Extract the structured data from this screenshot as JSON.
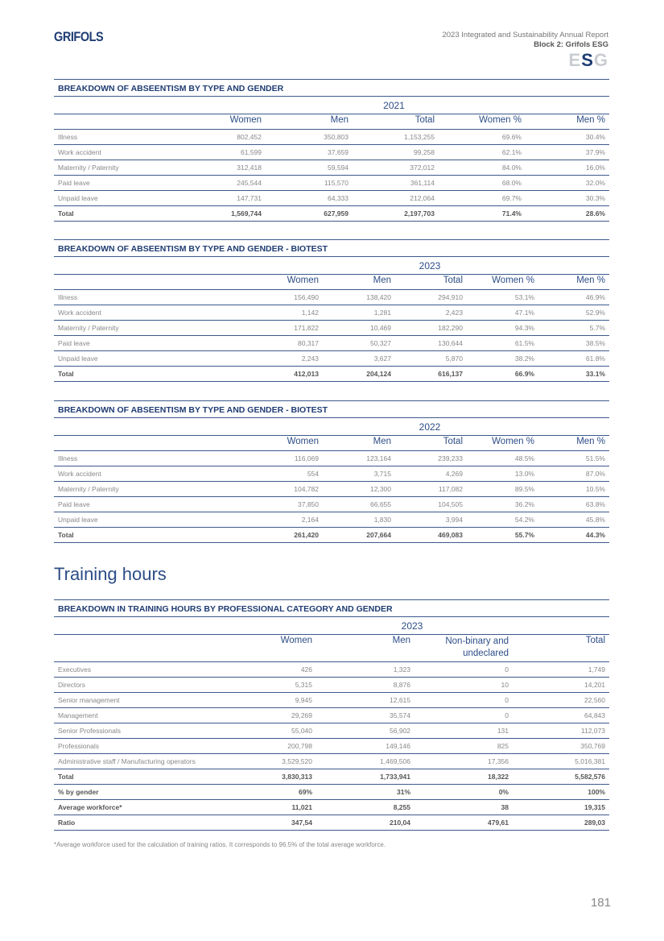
{
  "header": {
    "logo": "GRIFOLS",
    "report_title": "2023 Integrated and Sustainability Annual Report",
    "block": "Block 2: Grifols ESG",
    "esg_badge": "ESG"
  },
  "tables": [
    {
      "title": "BREAKDOWN OF ABSEENTISM BY TYPE AND GENDER",
      "year": "2021",
      "columns": [
        "Women",
        "Men",
        "Total",
        "Women %",
        "Men %"
      ],
      "rows": [
        {
          "label": "Illness",
          "values": [
            "802,452",
            "350,803",
            "1,153,255",
            "69.6%",
            "30.4%"
          ]
        },
        {
          "label": "Work accident",
          "values": [
            "61,599",
            "37,659",
            "99,258",
            "62.1%",
            "37.9%"
          ]
        },
        {
          "label": "Maternity / Paternity",
          "values": [
            "312,418",
            "59,594",
            "372,012",
            "84.0%",
            "16.0%"
          ]
        },
        {
          "label": "Paid leave",
          "values": [
            "245,544",
            "115,570",
            "361,114",
            "68.0%",
            "32.0%"
          ]
        },
        {
          "label": "Unpaid leave",
          "values": [
            "147,731",
            "64,333",
            "212,064",
            "69.7%",
            "30.3%"
          ]
        },
        {
          "label": "Total",
          "values": [
            "1,569,744",
            "627,959",
            "2,197,703",
            "71.4%",
            "28.6%"
          ],
          "bold": true
        }
      ]
    },
    {
      "title": "BREAKDOWN OF ABSEENTISM BY TYPE AND GENDER - BIOTEST",
      "year": "2023",
      "columns": [
        "Women",
        "Men",
        "Total",
        "Women %",
        "Men %"
      ],
      "rows": [
        {
          "label": "Illness",
          "values": [
            "156,490",
            "138,420",
            "294,910",
            "53.1%",
            "46.9%"
          ]
        },
        {
          "label": "Work accident",
          "values": [
            "1,142",
            "1,281",
            "2,423",
            "47.1%",
            "52.9%"
          ]
        },
        {
          "label": "Maternity / Paternity",
          "values": [
            "171,822",
            "10,469",
            "182,290",
            "94.3%",
            "5.7%"
          ]
        },
        {
          "label": "Paid leave",
          "values": [
            "80,317",
            "50,327",
            "130,644",
            "61.5%",
            "38.5%"
          ]
        },
        {
          "label": "Unpaid leave",
          "values": [
            "2,243",
            "3,627",
            "5,870",
            "38.2%",
            "61.8%"
          ]
        },
        {
          "label": "Total",
          "values": [
            "412,013",
            "204,124",
            "616,137",
            "66.9%",
            "33.1%"
          ],
          "bold": true
        }
      ]
    },
    {
      "title": "BREAKDOWN OF ABSEENTISM BY TYPE AND GENDER - BIOTEST",
      "year": "2022",
      "columns": [
        "Women",
        "Men",
        "Total",
        "Women %",
        "Men %"
      ],
      "rows": [
        {
          "label": "Illness",
          "values": [
            "116,069",
            "123,164",
            "239,233",
            "48.5%",
            "51.5%"
          ]
        },
        {
          "label": "Work accident",
          "values": [
            "554",
            "3,715",
            "4,269",
            "13.0%",
            "87.0%"
          ]
        },
        {
          "label": "Maternity / Paternity",
          "values": [
            "104,782",
            "12,300",
            "117,082",
            "89.5%",
            "10.5%"
          ]
        },
        {
          "label": "Paid leave",
          "values": [
            "37,850",
            "66,655",
            "104,505",
            "36.2%",
            "63.8%"
          ]
        },
        {
          "label": "Unpaid leave",
          "values": [
            "2,164",
            "1,830",
            "3,994",
            "54.2%",
            "45.8%"
          ]
        },
        {
          "label": "Total",
          "values": [
            "261,420",
            "207,664",
            "469,083",
            "55.7%",
            "44.3%"
          ],
          "bold": true
        }
      ]
    },
    {
      "title": "BREAKDOWN IN TRAINING HOURS BY PROFESSIONAL CATEGORY AND GENDER",
      "year": "2023",
      "columns": [
        "Women",
        "Men",
        "Non-binary and undeclared",
        "Total"
      ],
      "rows": [
        {
          "label": "Executives",
          "values": [
            "426",
            "1,323",
            "0",
            "1,749"
          ]
        },
        {
          "label": "Directors",
          "values": [
            "5,315",
            "8,876",
            "10",
            "14,201"
          ]
        },
        {
          "label": "Senior management",
          "values": [
            "9,945",
            "12,615",
            "0",
            "22,560"
          ]
        },
        {
          "label": "Management",
          "values": [
            "29,269",
            "35,574",
            "0",
            "64,843"
          ]
        },
        {
          "label": "Senior Professionals",
          "values": [
            "55,040",
            "56,902",
            "131",
            "112,073"
          ]
        },
        {
          "label": "Professionals",
          "values": [
            "200,798",
            "149,146",
            "825",
            "350,769"
          ]
        },
        {
          "label": "Administrative staff /  Manufacturing operators",
          "values": [
            "3,529,520",
            "1,469,506",
            "17,356",
            "5,016,381"
          ]
        },
        {
          "label": "Total",
          "values": [
            "3,830,313",
            "1,733,941",
            "18,322",
            "5,582,576"
          ],
          "bold": true
        },
        {
          "label": "% by gender",
          "values": [
            "69%",
            "31%",
            "0%",
            "100%"
          ],
          "bold": true
        },
        {
          "label": "Average workforce*",
          "values": [
            "11,021",
            "8,255",
            "38",
            "19,315"
          ],
          "bold": true
        },
        {
          "label": "Ratio",
          "values": [
            "347,54",
            "210,04",
            "479,61",
            "289,03"
          ],
          "bold": true
        }
      ]
    }
  ],
  "section_title": "Training hours",
  "footnote": "*Average workforce used for the calculation of training ratios. It corresponds to 96.5% of the total average workforce.",
  "page_number": "181"
}
